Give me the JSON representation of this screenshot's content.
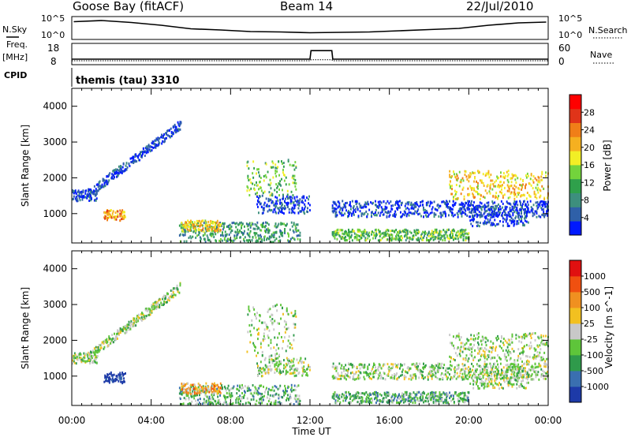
{
  "header": {
    "station": "Goose Bay (fitACF)",
    "beam": "Beam 14",
    "date": "22/Jul/2010",
    "cpid_label": "CPID",
    "cpid_value": "themis (tau) 3310"
  },
  "strips": {
    "nsky_label": "N.Sky",
    "nsky_ticks": [
      "10^5",
      "10^0"
    ],
    "nsearch_label": "N.Search",
    "nsearch_ticks": [
      "10^5",
      "10^0"
    ],
    "freq_label": "Freq.",
    "freq_unit": "[MHz]",
    "freq_ticks": [
      "18",
      "8"
    ],
    "nave_label": "Nave",
    "nave_ticks": [
      "60",
      "0"
    ],
    "freq_series": [
      {
        "t": 0,
        "mhz": 10.5
      },
      {
        "t": 12,
        "mhz": 10.5
      },
      {
        "t": 12.05,
        "mhz": 15.0
      },
      {
        "t": 13.1,
        "mhz": 15.0
      },
      {
        "t": 13.15,
        "mhz": 10.5
      },
      {
        "t": 24,
        "mhz": 10.5
      }
    ],
    "nave_series": [
      {
        "t": 0,
        "n": 10
      },
      {
        "t": 12,
        "n": 10
      },
      {
        "t": 12.05,
        "n": 13
      },
      {
        "t": 13.1,
        "n": 13
      },
      {
        "t": 13.15,
        "n": 10
      },
      {
        "t": 24,
        "n": 10
      }
    ],
    "nsky_series": [
      {
        "t": 0.1,
        "logv": 4.1
      },
      {
        "t": 1.5,
        "logv": 4.4
      },
      {
        "t": 3,
        "logv": 3.9
      },
      {
        "t": 4.5,
        "logv": 3.2
      },
      {
        "t": 6,
        "logv": 2.3
      },
      {
        "t": 7.5,
        "logv": 2.0
      },
      {
        "t": 9,
        "logv": 1.6
      },
      {
        "t": 10.5,
        "logv": 1.5
      },
      {
        "t": 12,
        "logv": 1.3
      },
      {
        "t": 13.5,
        "logv": 1.4
      },
      {
        "t": 15,
        "logv": 1.5
      },
      {
        "t": 16.5,
        "logv": 1.8
      },
      {
        "t": 18,
        "logv": 2.1
      },
      {
        "t": 19.5,
        "logv": 2.4
      },
      {
        "t": 21,
        "logv": 3.2
      },
      {
        "t": 22.5,
        "logv": 3.8
      },
      {
        "t": 23.9,
        "logv": 4.0
      }
    ]
  },
  "chart_data": [
    {
      "type": "heatmap",
      "name": "power",
      "ylabel": "Slant Range [km]",
      "ylim": [
        180,
        4500
      ],
      "xlim": [
        0,
        24
      ],
      "yticks": [
        1000,
        2000,
        3000,
        4000
      ],
      "colorbar_label": "Power [dB]",
      "colorbar_ticks": [
        "28",
        "24",
        "20",
        "16",
        "12",
        "8",
        "4"
      ],
      "colors": [
        "#0019ff",
        "#2f60a8",
        "#3d8f7d",
        "#2fa04b",
        "#73d33c",
        "#f2ee25",
        "#f5b020",
        "#f07e18",
        "#e03419",
        "#ff0000"
      ],
      "regions": [
        {
          "t0": 0.0,
          "t1": 1.3,
          "r0": 1350,
          "r1": 1650,
          "level": 1
        },
        {
          "t0": 0.8,
          "t1": 5.5,
          "r0": 1550,
          "r1": 3500,
          "level": 1,
          "rising": true
        },
        {
          "t0": 1.6,
          "t1": 2.7,
          "r0": 800,
          "r1": 1100,
          "level": 7
        },
        {
          "t0": 5.4,
          "t1": 11.5,
          "r0": 200,
          "r1": 750,
          "level": 3
        },
        {
          "t0": 5.5,
          "t1": 7.5,
          "r0": 500,
          "r1": 800,
          "level": 6
        },
        {
          "t0": 8.8,
          "t1": 11.3,
          "r0": 1500,
          "r1": 2500,
          "level": 4
        },
        {
          "t0": 9.3,
          "t1": 12.0,
          "r0": 1000,
          "r1": 1500,
          "level": 1
        },
        {
          "t0": 13.1,
          "t1": 24.0,
          "r0": 900,
          "r1": 1350,
          "level": 1
        },
        {
          "t0": 13.1,
          "t1": 20.0,
          "r0": 250,
          "r1": 550,
          "level": 4
        },
        {
          "t0": 19.0,
          "t1": 24.0,
          "r0": 1400,
          "r1": 2200,
          "level": 6
        },
        {
          "t0": 20.0,
          "t1": 23.0,
          "r0": 650,
          "r1": 1200,
          "level": 1
        }
      ]
    },
    {
      "type": "heatmap",
      "name": "velocity",
      "ylabel": "Slant Range [km]",
      "ylim": [
        180,
        4500
      ],
      "xlim": [
        0,
        24
      ],
      "yticks": [
        1000,
        2000,
        3000,
        4000
      ],
      "xticks": [
        "00:00",
        "04:00",
        "08:00",
        "12:00",
        "16:00",
        "20:00",
        "00:00"
      ],
      "xlabel": "Time UT",
      "colorbar_label": "Velocity [m s^-1]",
      "colorbar_ticks": [
        "1000",
        "500",
        "100",
        "25",
        "-25",
        "-100",
        "-500",
        "-1000"
      ],
      "colors": [
        "#1d3aa8",
        "#3a6fb0",
        "#2f9a4b",
        "#5ec53a",
        "#c8c8c8",
        "#f2c020",
        "#f09020",
        "#f05010",
        "#e01010"
      ],
      "regions": [
        {
          "t0": 0.0,
          "t1": 1.3,
          "r0": 1350,
          "r1": 1650,
          "level": 4
        },
        {
          "t0": 0.8,
          "t1": 5.5,
          "r0": 1550,
          "r1": 3500,
          "level": 4,
          "rising": true
        },
        {
          "t0": 1.6,
          "t1": 2.7,
          "r0": 800,
          "r1": 1100,
          "level": 0
        },
        {
          "t0": 5.4,
          "t1": 11.5,
          "r0": 200,
          "r1": 750,
          "level": 3
        },
        {
          "t0": 5.5,
          "t1": 7.5,
          "r0": 500,
          "r1": 800,
          "level": 6
        },
        {
          "t0": 8.8,
          "t1": 11.3,
          "r0": 1500,
          "r1": 3000,
          "level": 4
        },
        {
          "t0": 9.3,
          "t1": 12.0,
          "r0": 1000,
          "r1": 1500,
          "level": 4
        },
        {
          "t0": 13.1,
          "t1": 24.0,
          "r0": 900,
          "r1": 1350,
          "level": 4
        },
        {
          "t0": 13.1,
          "t1": 20.0,
          "r0": 250,
          "r1": 550,
          "level": 3
        },
        {
          "t0": 19.0,
          "t1": 24.0,
          "r0": 1400,
          "r1": 2200,
          "level": 4
        },
        {
          "t0": 20.0,
          "t1": 23.0,
          "r0": 650,
          "r1": 1200,
          "level": 4
        }
      ]
    }
  ]
}
